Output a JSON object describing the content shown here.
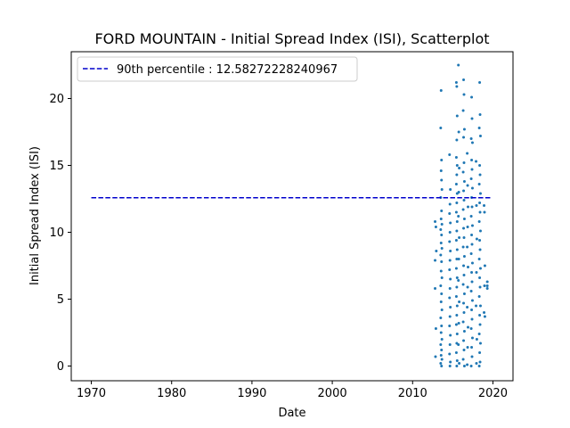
{
  "chart_data": {
    "type": "scatter",
    "title": "FORD MOUNTAIN - Initial Spread Index (ISI), Scatterplot",
    "xlabel": "Date",
    "ylabel": "Initial Spread Index (ISI)",
    "xlim": [
      1967.5,
      2022.5
    ],
    "ylim": [
      -1.1,
      23.5
    ],
    "xticks": [
      1970,
      1980,
      1990,
      2000,
      2010,
      2020
    ],
    "yticks": [
      0,
      5,
      10,
      15,
      20
    ],
    "grid": false,
    "legend_position": "top-left",
    "series": [
      {
        "name": "90th percentile : 12.58272228240967",
        "kind": "line",
        "style": "dashed",
        "color": "#0000cc",
        "x": [
          1970,
          2019.8
        ],
        "y": [
          12.58272228240967,
          12.58272228240967
        ]
      },
      {
        "kind": "scatter",
        "color": "#1f77b4",
        "points": [
          [
            2013.55,
            20.6
          ],
          [
            2013.5,
            17.8
          ],
          [
            2013.6,
            15.4
          ],
          [
            2013.55,
            14.6
          ],
          [
            2013.6,
            13.9
          ],
          [
            2013.65,
            13.2
          ],
          [
            2013.5,
            12.6
          ],
          [
            2013.6,
            11.6
          ],
          [
            2013.55,
            11.0
          ],
          [
            2013.65,
            10.6
          ],
          [
            2013.5,
            10.2
          ],
          [
            2013.6,
            9.8
          ],
          [
            2013.55,
            9.2
          ],
          [
            2013.65,
            8.8
          ],
          [
            2013.5,
            8.3
          ],
          [
            2013.6,
            7.8
          ],
          [
            2013.55,
            7.1
          ],
          [
            2013.65,
            6.6
          ],
          [
            2013.5,
            6.0
          ],
          [
            2013.6,
            5.4
          ],
          [
            2013.55,
            4.8
          ],
          [
            2013.65,
            4.2
          ],
          [
            2013.5,
            3.6
          ],
          [
            2013.6,
            3.0
          ],
          [
            2013.55,
            2.5
          ],
          [
            2013.65,
            2.0
          ],
          [
            2013.5,
            1.6
          ],
          [
            2013.6,
            1.2
          ],
          [
            2013.55,
            0.8
          ],
          [
            2013.65,
            0.5
          ],
          [
            2013.5,
            0.2
          ],
          [
            2013.6,
            0.0
          ],
          [
            2012.8,
            10.8
          ],
          [
            2012.8,
            7.9
          ],
          [
            2012.8,
            5.8
          ],
          [
            2012.9,
            2.8
          ],
          [
            2012.85,
            0.7
          ],
          [
            2012.9,
            10.4
          ],
          [
            2012.95,
            8.6
          ],
          [
            2014.6,
            15.8
          ],
          [
            2014.7,
            13.2
          ],
          [
            2014.65,
            12.1
          ],
          [
            2014.6,
            11.4
          ],
          [
            2014.7,
            10.7
          ],
          [
            2014.65,
            10.0
          ],
          [
            2014.6,
            9.3
          ],
          [
            2014.7,
            8.6
          ],
          [
            2014.65,
            7.9
          ],
          [
            2014.6,
            7.2
          ],
          [
            2014.7,
            6.5
          ],
          [
            2014.65,
            5.8
          ],
          [
            2014.6,
            5.1
          ],
          [
            2014.7,
            4.4
          ],
          [
            2014.65,
            3.7
          ],
          [
            2014.6,
            3.0
          ],
          [
            2014.7,
            2.3
          ],
          [
            2014.65,
            1.6
          ],
          [
            2014.6,
            0.9
          ],
          [
            2014.7,
            0.3
          ],
          [
            2014.65,
            0.0
          ],
          [
            2015.45,
            21.2
          ],
          [
            2015.5,
            20.9
          ],
          [
            2015.55,
            18.7
          ],
          [
            2015.5,
            16.9
          ],
          [
            2015.45,
            15.6
          ],
          [
            2015.55,
            15.0
          ],
          [
            2015.5,
            14.3
          ],
          [
            2015.45,
            13.6
          ],
          [
            2015.55,
            12.9
          ],
          [
            2015.5,
            12.2
          ],
          [
            2015.45,
            11.5
          ],
          [
            2015.55,
            10.8
          ],
          [
            2015.5,
            10.1
          ],
          [
            2015.45,
            9.4
          ],
          [
            2015.55,
            8.7
          ],
          [
            2015.5,
            8.0
          ],
          [
            2015.45,
            7.3
          ],
          [
            2015.55,
            6.6
          ],
          [
            2015.5,
            5.9
          ],
          [
            2015.45,
            5.2
          ],
          [
            2015.55,
            4.5
          ],
          [
            2015.5,
            3.8
          ],
          [
            2015.45,
            3.1
          ],
          [
            2015.55,
            2.4
          ],
          [
            2015.5,
            1.7
          ],
          [
            2015.45,
            1.0
          ],
          [
            2015.55,
            0.4
          ],
          [
            2015.5,
            0.0
          ],
          [
            2015.7,
            22.5
          ],
          [
            2015.75,
            17.5
          ],
          [
            2015.8,
            14.8
          ],
          [
            2015.75,
            13.0
          ],
          [
            2015.7,
            11.2
          ],
          [
            2015.8,
            9.6
          ],
          [
            2015.75,
            8.0
          ],
          [
            2015.7,
            6.4
          ],
          [
            2015.8,
            4.8
          ],
          [
            2015.75,
            3.2
          ],
          [
            2015.7,
            1.6
          ],
          [
            2015.8,
            0.2
          ],
          [
            2016.35,
            21.4
          ],
          [
            2016.4,
            20.3
          ],
          [
            2016.3,
            19.1
          ],
          [
            2016.45,
            17.7
          ],
          [
            2016.35,
            17.1
          ],
          [
            2016.4,
            15.2
          ],
          [
            2016.3,
            14.5
          ],
          [
            2016.45,
            13.8
          ],
          [
            2016.35,
            13.1
          ],
          [
            2016.4,
            12.4
          ],
          [
            2016.3,
            11.7
          ],
          [
            2016.45,
            11.0
          ],
          [
            2016.35,
            10.3
          ],
          [
            2016.4,
            9.6
          ],
          [
            2016.3,
            8.9
          ],
          [
            2016.45,
            8.2
          ],
          [
            2016.35,
            7.5
          ],
          [
            2016.4,
            6.8
          ],
          [
            2016.3,
            6.1
          ],
          [
            2016.45,
            5.4
          ],
          [
            2016.35,
            4.7
          ],
          [
            2016.4,
            4.0
          ],
          [
            2016.3,
            3.3
          ],
          [
            2016.45,
            2.6
          ],
          [
            2016.35,
            1.9
          ],
          [
            2016.4,
            1.2
          ],
          [
            2016.3,
            0.5
          ],
          [
            2016.45,
            0.0
          ],
          [
            2016.8,
            15.9
          ],
          [
            2016.85,
            13.5
          ],
          [
            2016.9,
            11.9
          ],
          [
            2016.85,
            10.4
          ],
          [
            2016.8,
            8.9
          ],
          [
            2016.9,
            7.4
          ],
          [
            2016.85,
            5.9
          ],
          [
            2016.8,
            4.4
          ],
          [
            2016.9,
            2.9
          ],
          [
            2016.85,
            1.4
          ],
          [
            2016.8,
            0.1
          ],
          [
            2017.35,
            20.1
          ],
          [
            2017.4,
            18.5
          ],
          [
            2017.3,
            17.0
          ],
          [
            2017.45,
            16.7
          ],
          [
            2017.35,
            15.4
          ],
          [
            2017.4,
            14.7
          ],
          [
            2017.3,
            14.0
          ],
          [
            2017.45,
            13.3
          ],
          [
            2017.35,
            12.6
          ],
          [
            2017.4,
            11.9
          ],
          [
            2017.3,
            11.2
          ],
          [
            2017.45,
            10.5
          ],
          [
            2017.35,
            9.8
          ],
          [
            2017.4,
            9.1
          ],
          [
            2017.3,
            8.4
          ],
          [
            2017.45,
            7.7
          ],
          [
            2017.35,
            7.0
          ],
          [
            2017.4,
            6.3
          ],
          [
            2017.3,
            5.6
          ],
          [
            2017.45,
            4.9
          ],
          [
            2017.35,
            4.2
          ],
          [
            2017.4,
            3.5
          ],
          [
            2017.3,
            2.8
          ],
          [
            2017.45,
            2.1
          ],
          [
            2017.35,
            1.4
          ],
          [
            2017.4,
            0.7
          ],
          [
            2017.3,
            0.0
          ],
          [
            2018.35,
            21.2
          ],
          [
            2018.4,
            18.8
          ],
          [
            2018.3,
            17.8
          ],
          [
            2018.45,
            17.2
          ],
          [
            2018.35,
            15.0
          ],
          [
            2018.4,
            14.3
          ],
          [
            2018.3,
            13.6
          ],
          [
            2018.45,
            12.9
          ],
          [
            2018.35,
            12.2
          ],
          [
            2018.4,
            11.5
          ],
          [
            2018.3,
            10.8
          ],
          [
            2018.45,
            10.1
          ],
          [
            2018.35,
            9.4
          ],
          [
            2018.4,
            8.7
          ],
          [
            2018.3,
            8.0
          ],
          [
            2018.45,
            7.3
          ],
          [
            2018.35,
            6.6
          ],
          [
            2018.4,
            5.9
          ],
          [
            2018.3,
            5.2
          ],
          [
            2018.45,
            4.5
          ],
          [
            2018.35,
            3.8
          ],
          [
            2018.4,
            3.1
          ],
          [
            2018.3,
            2.4
          ],
          [
            2018.45,
            1.7
          ],
          [
            2018.35,
            1.0
          ],
          [
            2018.4,
            0.3
          ],
          [
            2018.3,
            0.0
          ],
          [
            2017.9,
            15.3
          ],
          [
            2017.95,
            12.0
          ],
          [
            2018.0,
            9.5
          ],
          [
            2017.95,
            7.0
          ],
          [
            2017.9,
            4.5
          ],
          [
            2018.0,
            2.0
          ],
          [
            2017.95,
            0.2
          ],
          [
            2018.9,
            12.0
          ],
          [
            2018.95,
            11.5
          ],
          [
            2019.0,
            7.5
          ],
          [
            2018.95,
            6.0
          ],
          [
            2018.9,
            4.0
          ],
          [
            2019.0,
            3.7
          ],
          [
            2019.3,
            6.3
          ],
          [
            2019.3,
            6.0
          ],
          [
            2019.3,
            5.8
          ]
        ]
      }
    ]
  }
}
